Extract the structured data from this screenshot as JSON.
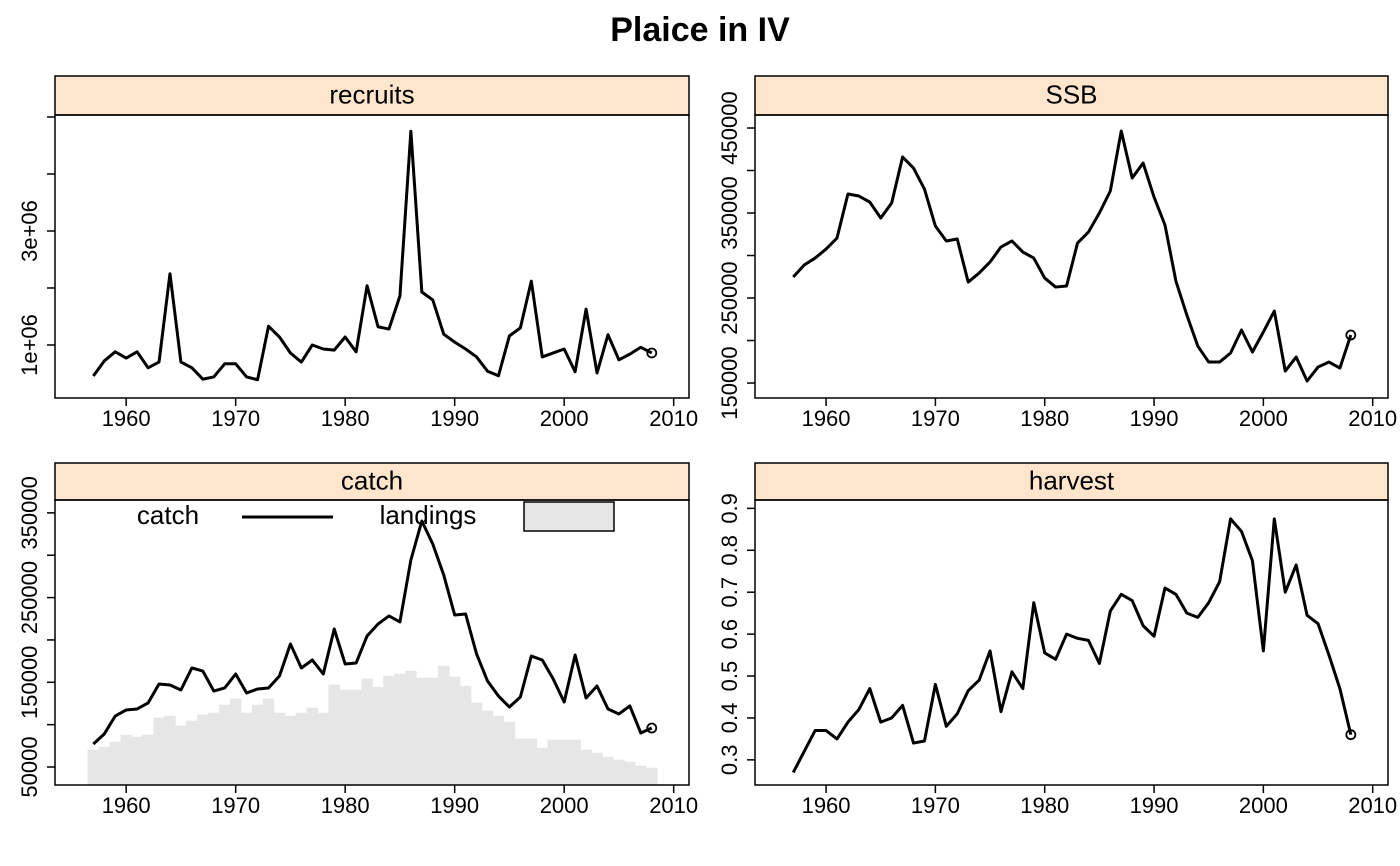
{
  "title": "Plaice in IV",
  "chart_data": [
    {
      "type": "line",
      "title": "recruits",
      "x": [
        1957,
        1958,
        1959,
        1960,
        1961,
        1962,
        1963,
        1964,
        1965,
        1966,
        1967,
        1968,
        1969,
        1970,
        1971,
        1972,
        1973,
        1974,
        1975,
        1976,
        1977,
        1978,
        1979,
        1980,
        1981,
        1982,
        1983,
        1984,
        1985,
        1986,
        1987,
        1988,
        1989,
        1990,
        1991,
        1992,
        1993,
        1994,
        1995,
        1996,
        1997,
        1998,
        1999,
        2000,
        2001,
        2002,
        2003,
        2004,
        2005,
        2006,
        2007,
        2008
      ],
      "values": [
        456000,
        720000,
        880000,
        770000,
        880000,
        600000,
        700000,
        2250000,
        700000,
        600000,
        400000,
        440000,
        670000,
        670000,
        440000,
        390000,
        1330000,
        1140000,
        860000,
        700000,
        1000000,
        930000,
        910000,
        1140000,
        880000,
        2040000,
        1320000,
        1280000,
        1860000,
        4750000,
        1930000,
        1790000,
        1190000,
        1050000,
        930000,
        790000,
        540000,
        460000,
        1160000,
        1300000,
        2120000,
        790000,
        860000,
        930000,
        530000,
        1630000,
        510000,
        1180000,
        740000,
        840000,
        960000,
        860000
      ],
      "color": "#000000",
      "end_marker": true,
      "xlim": [
        1953.5,
        2011.4
      ],
      "xticks": [
        1960,
        1970,
        1980,
        1990,
        2000,
        2010
      ],
      "ylim": [
        70000,
        5035000
      ],
      "yticks": [
        {
          "value": 1000000,
          "label": "1e+06"
        },
        {
          "value": 3000000,
          "label": "3e+06"
        }
      ],
      "yticks_minor": [
        2000000,
        4000000,
        5000000
      ]
    },
    {
      "type": "line",
      "title": "SSB",
      "x": [
        1957,
        1958,
        1959,
        1960,
        1961,
        1962,
        1963,
        1964,
        1965,
        1966,
        1967,
        1968,
        1969,
        1970,
        1971,
        1972,
        1973,
        1974,
        1975,
        1976,
        1977,
        1978,
        1979,
        1980,
        1981,
        1982,
        1983,
        1984,
        1985,
        1986,
        1987,
        1988,
        1989,
        1990,
        1991,
        1992,
        1993,
        1994,
        1995,
        1996,
        1997,
        1998,
        1999,
        2000,
        2001,
        2002,
        2003,
        2004,
        2005,
        2006,
        2007,
        2008
      ],
      "values": [
        274700,
        288800,
        297000,
        307600,
        320600,
        372400,
        370000,
        362900,
        344100,
        361800,
        415900,
        402900,
        378200,
        334700,
        317100,
        319400,
        268800,
        279400,
        292400,
        310000,
        317100,
        304100,
        297000,
        273500,
        262900,
        264100,
        314700,
        327600,
        350000,
        375900,
        446500,
        391200,
        408800,
        368800,
        335900,
        270000,
        230000,
        193500,
        174700,
        174700,
        185300,
        212400,
        186500,
        210000,
        234700,
        164100,
        180600,
        152400,
        168800,
        174700,
        167600,
        206500
      ],
      "color": "#000000",
      "end_marker": true,
      "xlim": [
        1953.5,
        2011.4
      ],
      "xticks": [
        1960,
        1970,
        1980,
        1990,
        2000,
        2010
      ],
      "ylim": [
        132400,
        465300
      ],
      "yticks": [
        150000,
        250000,
        350000,
        450000
      ],
      "yticks_minor": [
        200000,
        300000,
        400000
      ]
    },
    {
      "type": "combo",
      "title": "catch",
      "x": [
        1957,
        1958,
        1959,
        1960,
        1961,
        1962,
        1963,
        1964,
        1965,
        1966,
        1967,
        1968,
        1969,
        1970,
        1971,
        1972,
        1973,
        1974,
        1975,
        1976,
        1977,
        1978,
        1979,
        1980,
        1981,
        1982,
        1983,
        1984,
        1985,
        1986,
        1987,
        1988,
        1989,
        1990,
        1991,
        1992,
        1993,
        1994,
        1995,
        1996,
        1997,
        1998,
        1999,
        2000,
        2001,
        2002,
        2003,
        2004,
        2005,
        2006,
        2007,
        2008
      ],
      "series": [
        {
          "name": "catch",
          "style": "line",
          "color": "#000000",
          "values": [
            77200,
            89000,
            110200,
            117300,
            118500,
            125600,
            148000,
            146800,
            140900,
            166900,
            163300,
            139700,
            143300,
            159800,
            137400,
            142100,
            143300,
            157400,
            195200,
            166900,
            176300,
            159800,
            212900,
            171600,
            172800,
            204700,
            218800,
            228300,
            221200,
            294400,
            340400,
            313300,
            276700,
            229500,
            230600,
            183400,
            151500,
            133800,
            120800,
            132600,
            181000,
            176300,
            153900,
            126700,
            182200,
            131500,
            145600,
            118500,
            112600,
            122000,
            90100,
            96000
          ]
        },
        {
          "name": "landings",
          "style": "bar",
          "color": "#e6e6e6",
          "values": [
            70100,
            73600,
            79500,
            87800,
            85400,
            87800,
            107900,
            110200,
            98400,
            104300,
            111400,
            113800,
            123200,
            130300,
            113800,
            123200,
            130300,
            113800,
            110200,
            113800,
            119700,
            113800,
            146800,
            140900,
            140900,
            153900,
            144400,
            157400,
            159800,
            163300,
            155100,
            155100,
            169200,
            156300,
            145600,
            125600,
            116100,
            110200,
            103100,
            83100,
            83100,
            72400,
            81900,
            81900,
            81900,
            70100,
            66500,
            61800,
            58300,
            55900,
            51200,
            48800
          ]
        }
      ],
      "end_marker": true,
      "legend": "top",
      "xlim": [
        1953.5,
        2011.4
      ],
      "xticks": [
        1960,
        1970,
        1980,
        1990,
        2000,
        2010
      ],
      "ylim": [
        28750,
        365200
      ],
      "yticks": [
        50000,
        150000,
        250000,
        350000
      ],
      "yticks_minor": [
        100000,
        200000,
        300000
      ]
    },
    {
      "type": "line",
      "title": "harvest",
      "x": [
        1957,
        1958,
        1959,
        1960,
        1961,
        1962,
        1963,
        1964,
        1965,
        1966,
        1967,
        1968,
        1969,
        1970,
        1971,
        1972,
        1973,
        1974,
        1975,
        1976,
        1977,
        1978,
        1979,
        1980,
        1981,
        1982,
        1983,
        1984,
        1985,
        1986,
        1987,
        1988,
        1989,
        1990,
        1991,
        1992,
        1993,
        1994,
        1995,
        1996,
        1997,
        1998,
        1999,
        2000,
        2001,
        2002,
        2003,
        2004,
        2005,
        2006,
        2007,
        2008
      ],
      "values": [
        0.27,
        0.32,
        0.37,
        0.37,
        0.35,
        0.39,
        0.42,
        0.47,
        0.39,
        0.4,
        0.43,
        0.34,
        0.345,
        0.48,
        0.38,
        0.41,
        0.465,
        0.49,
        0.56,
        0.415,
        0.51,
        0.47,
        0.675,
        0.555,
        0.54,
        0.6,
        0.59,
        0.585,
        0.53,
        0.655,
        0.695,
        0.68,
        0.62,
        0.595,
        0.71,
        0.695,
        0.65,
        0.64,
        0.675,
        0.725,
        0.875,
        0.845,
        0.775,
        0.56,
        0.875,
        0.7,
        0.765,
        0.645,
        0.625,
        0.55,
        0.47,
        0.36
      ],
      "color": "#000000",
      "end_marker": true,
      "xlim": [
        1953.5,
        2011.4
      ],
      "xticks": [
        1960,
        1970,
        1980,
        1990,
        2000,
        2010
      ],
      "ylim": [
        0.24,
        0.92
      ],
      "yticks": [
        0.3,
        0.4,
        0.5,
        0.6,
        0.7,
        0.8,
        0.9
      ]
    }
  ]
}
